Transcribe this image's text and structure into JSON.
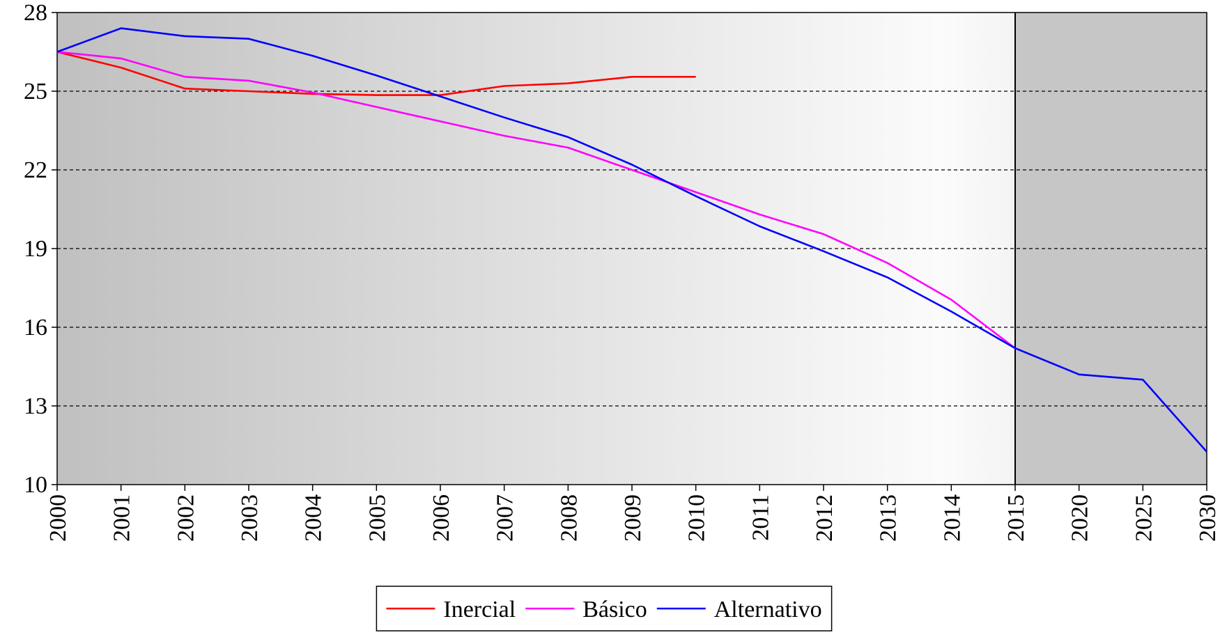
{
  "chart_data": {
    "type": "line",
    "categories": [
      "2000",
      "2001",
      "2002",
      "2003",
      "2004",
      "2005",
      "2006",
      "2007",
      "2008",
      "2009",
      "2010",
      "2011",
      "2012",
      "2013",
      "2014",
      "2015",
      "2020",
      "2025",
      "2030"
    ],
    "series": [
      {
        "name": "Inercial",
        "color": "#ff0000",
        "values": [
          26.5,
          25.9,
          25.1,
          25.0,
          24.9,
          24.85,
          24.85,
          25.2,
          25.3,
          25.55,
          25.55,
          null,
          null,
          null,
          null,
          null,
          null,
          null,
          null
        ]
      },
      {
        "name": "Básico",
        "color": "#ff00ff",
        "values": [
          26.5,
          26.25,
          25.55,
          25.4,
          24.95,
          24.4,
          23.85,
          23.3,
          22.85,
          22.0,
          21.15,
          20.3,
          19.55,
          18.45,
          17.05,
          15.2,
          null,
          null,
          null
        ]
      },
      {
        "name": "Alternativo",
        "color": "#0000ff",
        "values": [
          26.5,
          27.4,
          27.1,
          27.0,
          26.35,
          25.6,
          24.8,
          24.0,
          23.25,
          22.2,
          21.0,
          19.85,
          18.9,
          17.9,
          16.6,
          15.2,
          14.2,
          14.0,
          11.25
        ]
      }
    ],
    "ylim": [
      10,
      28
    ],
    "yticks": [
      10,
      13,
      16,
      19,
      22,
      25,
      28
    ],
    "grid": true,
    "legend": "bottom"
  }
}
